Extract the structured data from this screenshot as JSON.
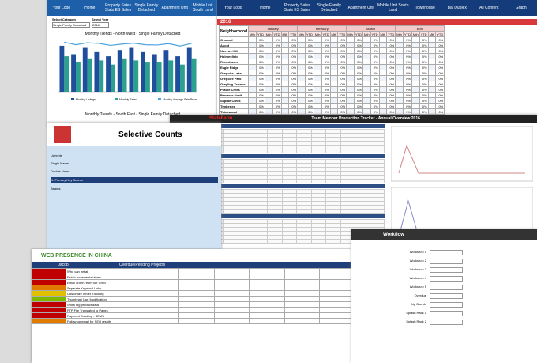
{
  "left_dashboard": {
    "nav": [
      "Your Logo",
      "Home",
      "Property Sales Stats ES Sales",
      "Single Family Detached",
      "Apartment Unit",
      "Mobile Unit South Land"
    ],
    "select_category_label": "Select Category",
    "select_year_label": "Select Year",
    "category": "Single Family Detached",
    "year": "2016",
    "chart": {
      "type": "bar",
      "title": "Monthly Trends - North West - Single Family Detached",
      "categories": [
        null,
        null,
        null,
        null,
        null,
        null,
        null,
        null,
        null,
        null,
        null,
        null
      ],
      "series": [
        {
          "name": "Monthly Listings",
          "color": "#1f4e9c",
          "values": [
            22,
            18,
            21,
            19,
            17,
            20,
            21,
            19,
            18,
            20,
            17,
            21
          ]
        },
        {
          "name": "Monthly Sales",
          "color": "#2ba08f",
          "values": [
            17,
            14,
            16,
            15,
            13,
            16,
            15,
            14,
            14,
            15,
            13,
            16
          ]
        },
        {
          "name": "Monthly Average Sale Price",
          "color": "#4aa3df",
          "axis": "y2",
          "values": [
            380000,
            360000,
            375000,
            370000,
            355000,
            365000,
            372000,
            360000,
            358000,
            368000,
            350000,
            370000
          ]
        }
      ],
      "ylim": [
        0,
        25
      ],
      "y2lim": [
        0,
        400000
      ]
    },
    "second_chart_title": "Monthly Trends - South East - Single Family Detached"
  },
  "right_dashboard": {
    "nav": [
      "Your Logo",
      "Home",
      "Property Sales Stats ES Sales",
      "Single Family Detached",
      "Apartment Unit",
      "Mobile Unit South Land",
      "Townhouse",
      "Bal Duplex",
      "All Content",
      "Graph"
    ],
    "year": "2016",
    "header": "Neighborhood",
    "months": [
      "January",
      "February",
      "March",
      "April"
    ],
    "subcolumns": [
      "Mth",
      "YTD"
    ],
    "cell_value": "0%",
    "neighborhoods": [
      "Ormond",
      "Ascot",
      "Nuevos Hill",
      "Holmesfield",
      "Riverdowns",
      "Eagle Ridge",
      "Gregoire Lake",
      "Gregoire Park",
      "Grayling Terrace",
      "Prairie Creek",
      "Pinnacle North",
      "Saprae Creek",
      "Timberlea",
      "Thickwood",
      "Wood Buffalo",
      "Waterways"
    ]
  },
  "tracker": {
    "logo": "StateFarm",
    "title": "Team Member Production Tracker - Annual Overview 2016"
  },
  "counts": {
    "title": "Selective Counts",
    "labels": [
      "Uprights",
      "Single Name",
      "Double Name",
      "1. Primary Key Beams",
      "Beams"
    ]
  },
  "projects": {
    "title": "WEB PRESENCE IN CHINA",
    "owner": "Jacob",
    "heading": "Overdue/Pending Projects",
    "tasks": [
      "Who can install",
      "Finish incremental items",
      "Email orders from our CRM",
      "Separate Keyword Links",
      "Customize Order Tracking",
      "Thumbnail Cart Modification",
      "Show big product data",
      "FTP File Translated to Pages",
      "Payment Tracking - SEMS",
      "Follow up email for SEO results"
    ]
  },
  "workflow": {
    "title": "Workflow",
    "rows": [
      "Workshop 1",
      "Workshop 2",
      "Workshop 3",
      "Workshop 4",
      "Workshop 5",
      "Overdue",
      "Up Boards",
      "Splash Rack 1",
      "Splash Rack 2"
    ]
  }
}
